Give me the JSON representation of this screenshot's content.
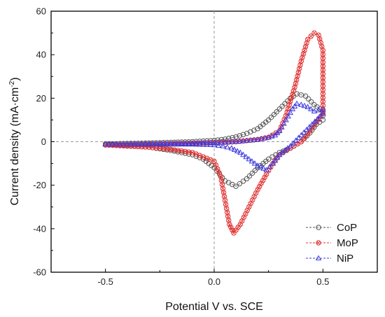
{
  "chart_data": {
    "type": "line",
    "title": "",
    "xlabel": "Potential V vs. SCE",
    "ylabel_main": "Current density (mA·cm",
    "ylabel_sup": "-2",
    "ylabel_close": ")",
    "xlim": [
      -0.75,
      0.75
    ],
    "ylim": [
      -60,
      60
    ],
    "x_ticks": [
      "-0.5",
      "0.0",
      "0.5"
    ],
    "x_tick_values": [
      -0.5,
      0.0,
      0.5
    ],
    "y_ticks": [
      "-60",
      "-40",
      "-20",
      "0",
      "20",
      "40",
      "60"
    ],
    "y_tick_values": [
      -60,
      -40,
      -20,
      0,
      20,
      40,
      60
    ],
    "reference_lines": {
      "x": 0,
      "y": 0
    },
    "legend_position": "bottom-right",
    "grid": false,
    "series": [
      {
        "name": "CoP",
        "color": "#555555",
        "marker": "circle",
        "x": [
          -0.5,
          -0.4,
          -0.3,
          -0.2,
          -0.1,
          0.0,
          0.05,
          0.1,
          0.15,
          0.2,
          0.25,
          0.3,
          0.35,
          0.38,
          0.42,
          0.46,
          0.5,
          0.5,
          0.47,
          0.44,
          0.4,
          0.35,
          0.3,
          0.25,
          0.2,
          0.15,
          0.1,
          0.05,
          0.0,
          -0.05,
          -0.1,
          -0.2,
          -0.3,
          -0.4,
          -0.5
        ],
        "y": [
          -1,
          -0.8,
          -0.6,
          -0.3,
          0,
          0.6,
          1.2,
          2.2,
          3.8,
          6,
          10,
          15,
          20,
          22,
          21,
          17,
          14,
          10,
          8,
          4,
          0,
          -3,
          -5,
          -8,
          -12,
          -17,
          -20.5,
          -18,
          -12,
          -8,
          -6,
          -4,
          -2.5,
          -1.8,
          -1
        ]
      },
      {
        "name": "MoP",
        "color": "#e03030",
        "marker": "circle-cross",
        "x": [
          -0.5,
          -0.4,
          -0.3,
          -0.2,
          -0.1,
          0.0,
          0.1,
          0.2,
          0.25,
          0.3,
          0.33,
          0.37,
          0.4,
          0.43,
          0.46,
          0.48,
          0.5,
          0.5,
          0.47,
          0.44,
          0.4,
          0.35,
          0.3,
          0.27,
          0.24,
          0.2,
          0.16,
          0.12,
          0.09,
          0.07,
          0.05,
          0.03,
          0.0,
          -0.1,
          -0.2,
          -0.3,
          -0.4,
          -0.5
        ],
        "y": [
          -1.5,
          -1.4,
          -1.2,
          -1,
          -0.8,
          -0.5,
          0,
          1,
          2,
          5,
          12,
          25,
          37,
          47,
          50,
          49,
          42,
          13,
          9,
          5,
          0,
          -3,
          -6,
          -10,
          -15,
          -22,
          -30,
          -38,
          -42,
          -38,
          -27,
          -16,
          -9,
          -5,
          -3.5,
          -2.5,
          -2,
          -1.5
        ]
      },
      {
        "name": "NiP",
        "color": "#3a3adf",
        "marker": "triangle",
        "x": [
          -0.5,
          -0.4,
          -0.3,
          -0.2,
          -0.1,
          0.0,
          0.1,
          0.2,
          0.25,
          0.28,
          0.3,
          0.33,
          0.36,
          0.38,
          0.4,
          0.43,
          0.46,
          0.5,
          0.5,
          0.45,
          0.4,
          0.35,
          0.3,
          0.27,
          0.24,
          0.2,
          0.16,
          0.12,
          0.08,
          0.04,
          0.0,
          -0.1,
          -0.2,
          -0.3,
          -0.4,
          -0.5
        ],
        "y": [
          -1.2,
          -1.1,
          -1,
          -0.9,
          -0.7,
          -0.4,
          0,
          1,
          2,
          3,
          5,
          10,
          15,
          17.5,
          17,
          16,
          14,
          15,
          13,
          8,
          3,
          -2,
          -6,
          -10,
          -13,
          -11,
          -8,
          -5,
          -3,
          -2,
          -1.5,
          -1.2,
          -1.2,
          -1.2,
          -1.2,
          -1.2
        ]
      }
    ]
  }
}
